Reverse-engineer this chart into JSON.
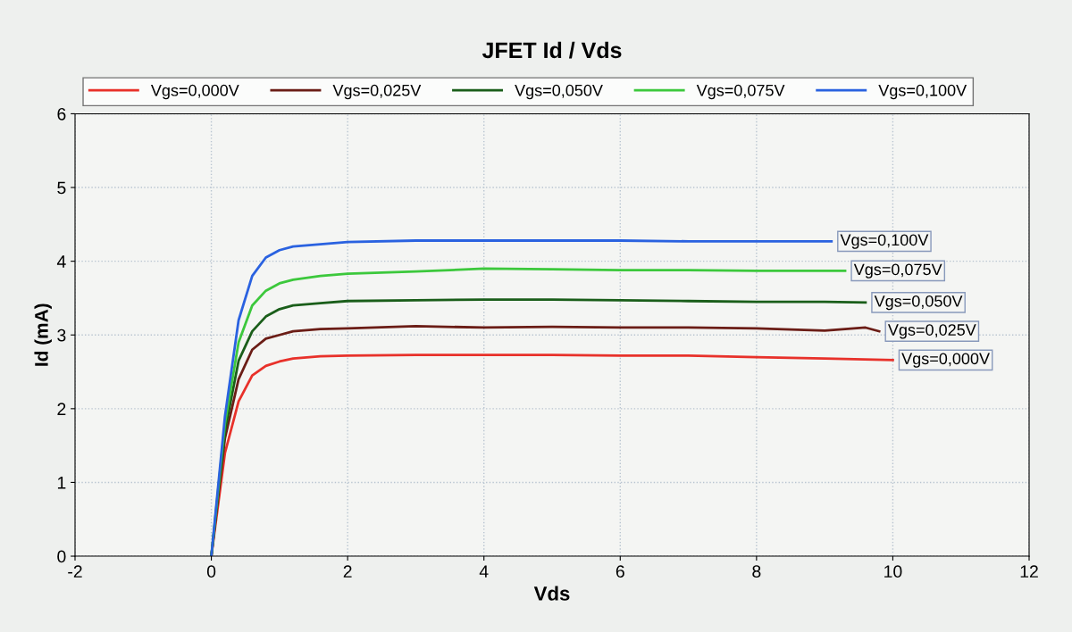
{
  "chart_data": {
    "type": "line",
    "title": "JFET Id / Vds",
    "xlabel": "Vds",
    "ylabel": "Id (mA)",
    "xlim": [
      -2,
      12
    ],
    "ylim": [
      0,
      6
    ],
    "xticks": [
      -2,
      0,
      2,
      4,
      6,
      8,
      10,
      12
    ],
    "yticks": [
      0,
      1,
      2,
      3,
      4,
      5,
      6
    ],
    "grid": true,
    "legend": "top",
    "line_style": "solid",
    "marker": "none",
    "series": [
      {
        "name": "Vgs=0,000V",
        "color": "#e8312a",
        "x": [
          0,
          0.2,
          0.4,
          0.6,
          0.8,
          1.0,
          1.2,
          1.6,
          2,
          3,
          4,
          5,
          6,
          7,
          8,
          9,
          10
        ],
        "values": [
          0,
          1.4,
          2.1,
          2.45,
          2.58,
          2.64,
          2.68,
          2.71,
          2.72,
          2.73,
          2.73,
          2.73,
          2.72,
          2.72,
          2.7,
          2.68,
          2.66
        ]
      },
      {
        "name": "Vgs=0,025V",
        "color": "#6b1d16",
        "x": [
          0,
          0.2,
          0.4,
          0.6,
          0.8,
          1.0,
          1.2,
          1.6,
          2,
          3,
          4,
          5,
          6,
          7,
          8,
          9,
          9.6,
          9.8
        ],
        "values": [
          0,
          1.6,
          2.4,
          2.8,
          2.95,
          3.0,
          3.05,
          3.08,
          3.09,
          3.12,
          3.1,
          3.11,
          3.1,
          3.1,
          3.09,
          3.06,
          3.1,
          3.05
        ]
      },
      {
        "name": "Vgs=0,050V",
        "color": "#1a5e1a",
        "x": [
          0,
          0.2,
          0.4,
          0.6,
          0.8,
          1.0,
          1.2,
          1.6,
          2,
          3,
          4,
          5,
          6,
          7,
          8,
          9,
          9.6
        ],
        "values": [
          0,
          1.7,
          2.65,
          3.05,
          3.25,
          3.35,
          3.4,
          3.43,
          3.46,
          3.47,
          3.48,
          3.48,
          3.47,
          3.46,
          3.45,
          3.45,
          3.44
        ]
      },
      {
        "name": "Vgs=0,075V",
        "color": "#3cc83c",
        "x": [
          0,
          0.2,
          0.4,
          0.6,
          0.8,
          1.0,
          1.2,
          1.6,
          2,
          3,
          4,
          5,
          6,
          7,
          8,
          9.3
        ],
        "values": [
          0,
          1.8,
          2.9,
          3.4,
          3.6,
          3.7,
          3.75,
          3.8,
          3.83,
          3.86,
          3.9,
          3.89,
          3.88,
          3.88,
          3.87,
          3.87
        ]
      },
      {
        "name": "Vgs=0,100V",
        "color": "#2a62e0",
        "x": [
          0,
          0.2,
          0.4,
          0.6,
          0.8,
          1.0,
          1.2,
          1.6,
          2,
          3,
          4,
          5,
          6,
          7,
          8,
          9.1
        ],
        "values": [
          0,
          1.9,
          3.2,
          3.8,
          4.05,
          4.15,
          4.2,
          4.23,
          4.26,
          4.28,
          4.28,
          4.28,
          4.28,
          4.27,
          4.27,
          4.27
        ]
      }
    ],
    "annotations": [
      {
        "text": "Vgs=0,100V",
        "x": 9.1,
        "y": 4.27
      },
      {
        "text": "Vgs=0,075V",
        "x": 9.3,
        "y": 3.87
      },
      {
        "text": "Vgs=0,050V",
        "x": 9.6,
        "y": 3.44
      },
      {
        "text": "Vgs=0,025V",
        "x": 9.8,
        "y": 3.05
      },
      {
        "text": "Vgs=0,000V",
        "x": 10,
        "y": 2.66
      }
    ]
  }
}
